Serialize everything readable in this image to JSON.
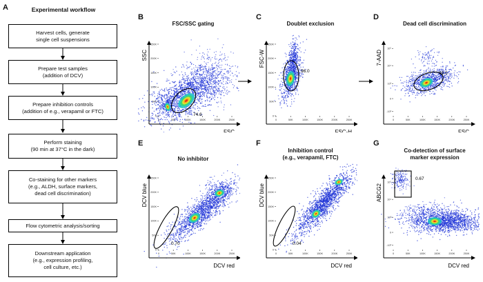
{
  "panel_letters": [
    "A",
    "B",
    "C",
    "D",
    "E",
    "F",
    "G"
  ],
  "workflow": {
    "title": "Experimental workflow",
    "steps": [
      {
        "lines": [
          "Harvest cells, generate",
          "single cell suspensions"
        ]
      },
      {
        "lines": [
          "Prepare test samples",
          "(addition of DCV)"
        ]
      },
      {
        "lines": [
          "Prepare inhibition controls",
          "(addition of e.g., verapamil or FTC)"
        ]
      },
      {
        "lines": [
          "Perform staining",
          "(90 min at 37°C in the dark)"
        ]
      },
      {
        "lines": [
          "Co-staining for other markers",
          "(e.g., ALDH, surface markers,",
          "dead cell discrimination)"
        ]
      },
      {
        "lines": [
          "Flow cytometric analysis/sorting"
        ]
      },
      {
        "lines": [
          "Downstream application",
          "(e.g., expression profiling,",
          "cell culture, etc.)"
        ]
      }
    ]
  },
  "panels": {
    "B": {
      "title": [
        "FSC/SSC gating"
      ],
      "xlabel": "FSC",
      "ylabel": "SSC",
      "gate_value": "74.6"
    },
    "C": {
      "title": [
        "Doublet exclusion"
      ],
      "xlabel": "FSC-H",
      "ylabel": "FSC-W",
      "gate_value": "96.0"
    },
    "D": {
      "title": [
        "Dead cell discrimination"
      ],
      "xlabel": "FSC",
      "ylabel": "7-AAD",
      "gate_value": "99.0"
    },
    "E": {
      "title": [
        "No inhibitor"
      ],
      "xlabel": "DCV red",
      "ylabel": "DCV blue",
      "gate_value": "0.70"
    },
    "F": {
      "title": [
        "Inhibition control",
        "(e.g., verapamil, FTC)"
      ],
      "xlabel": "DCV red",
      "ylabel": "DCV blue",
      "gate_value": "0.04"
    },
    "G": {
      "title": [
        "Co-detection of surface",
        "marker expression"
      ],
      "xlabel": "DCV red",
      "ylabel": "ABCG2",
      "gate_value": "0.67"
    }
  },
  "ticks": {
    "linear_x": [
      "0",
      "50K",
      "100K",
      "150K",
      "200K",
      "250K"
    ],
    "linear_y": [
      "0",
      "50K",
      "100K",
      "150K",
      "200K",
      "250K"
    ],
    "log_y": [
      "-10³",
      "0",
      "10³",
      "10⁴",
      "10⁵"
    ]
  },
  "colors": {
    "density_low": "#1a2fd6",
    "density_mid": "#21c4c9",
    "density_high": "#f2e02a",
    "density_peak": "#e82410"
  }
}
